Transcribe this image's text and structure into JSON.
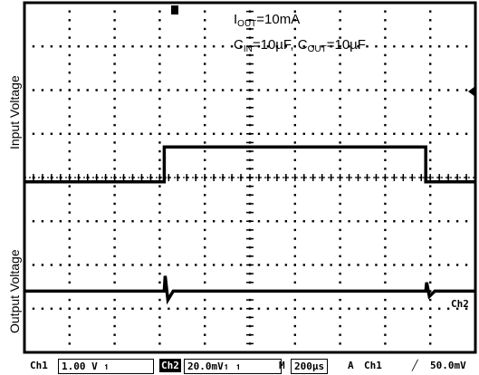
{
  "chart_data": {
    "type": "line",
    "y_axis_labels": [
      "Input Voltage",
      "Output Voltage"
    ],
    "grid": true,
    "x_divisions": 10,
    "y_divisions": 8,
    "annotation": {
      "line1": {
        "prefix": "I",
        "sub": "OUT",
        "suffix": "=10mA"
      },
      "line2": {
        "p1": "C",
        "s1": "IN",
        "m1": "=10µF, ",
        "p2": "C",
        "s2": "OUT",
        "m2": "=10µF"
      }
    },
    "channel_tag": "Ch2",
    "series": [
      {
        "points": [
          [
            0,
            3.9
          ],
          [
            3.1,
            3.9
          ],
          [
            3.1,
            4.7
          ],
          [
            8.9,
            4.7
          ],
          [
            8.9,
            3.9
          ],
          [
            10,
            3.9
          ]
        ],
        "color": "#000000"
      },
      {
        "points": [
          [
            0,
            1.4
          ],
          [
            3.1,
            1.4
          ],
          [
            3.12,
            1.75
          ],
          [
            3.18,
            1.2
          ],
          [
            3.3,
            1.4
          ],
          [
            8.9,
            1.4
          ],
          [
            8.92,
            1.6
          ],
          [
            8.98,
            1.28
          ],
          [
            9.1,
            1.4
          ],
          [
            10,
            1.4
          ]
        ],
        "color": "#000000"
      }
    ],
    "colors": {
      "trace": "#000000",
      "grid": "#000000",
      "background": "#ffffff"
    }
  },
  "status": {
    "ch1_label": "Ch1",
    "ch1_scale": "1.00 V ↿",
    "ch2_label": "Ch2",
    "ch2_scale": "20.0mV↿ ↿",
    "m_label": "M",
    "timebase": "200µs",
    "trig_a": "A",
    "trig_ch": "Ch1",
    "trig_slope": "╱",
    "trig_level": "50.0mV"
  }
}
